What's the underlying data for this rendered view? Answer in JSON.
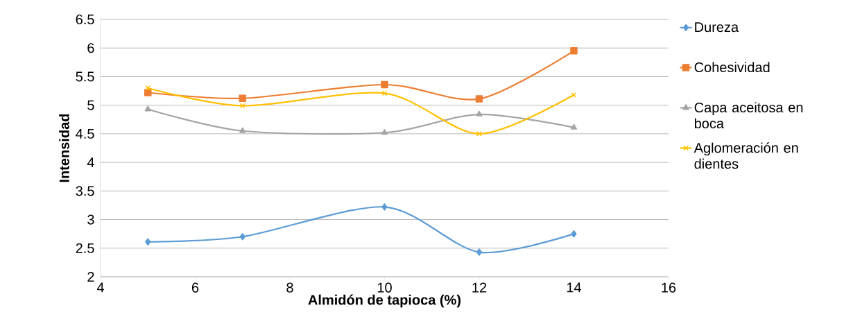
{
  "chart_data": {
    "type": "line",
    "xlabel": "Almidón de tapioca (%)",
    "ylabel": "Intensidad",
    "x": [
      5,
      7,
      10,
      12,
      14
    ],
    "series": [
      {
        "name": "Dureza",
        "color": "#5b9bd5",
        "marker": "diamond",
        "values": [
          2.61,
          2.7,
          3.22,
          2.43,
          2.75
        ]
      },
      {
        "name": "Cohesividad",
        "color": "#ed7d31",
        "marker": "square",
        "values": [
          5.22,
          5.12,
          5.36,
          5.11,
          5.95
        ]
      },
      {
        "name": "Capa aceitosa en boca",
        "color": "#a5a5a5",
        "marker": "triangle",
        "values": [
          4.93,
          4.55,
          4.52,
          4.84,
          4.61
        ]
      },
      {
        "name": "Aglomeración en dientes",
        "color": "#ffc000",
        "marker": "cross",
        "values": [
          5.3,
          4.99,
          5.21,
          4.5,
          5.18
        ]
      }
    ],
    "xlim": [
      4,
      16
    ],
    "xticks": [
      4,
      6,
      8,
      10,
      12,
      14,
      16
    ],
    "ylim": [
      2,
      6.5
    ],
    "yticks": [
      2,
      2.5,
      3,
      3.5,
      4,
      4.5,
      5,
      5.5,
      6,
      6.5
    ],
    "grid": "y",
    "legend": "right",
    "line_style": "solid"
  }
}
